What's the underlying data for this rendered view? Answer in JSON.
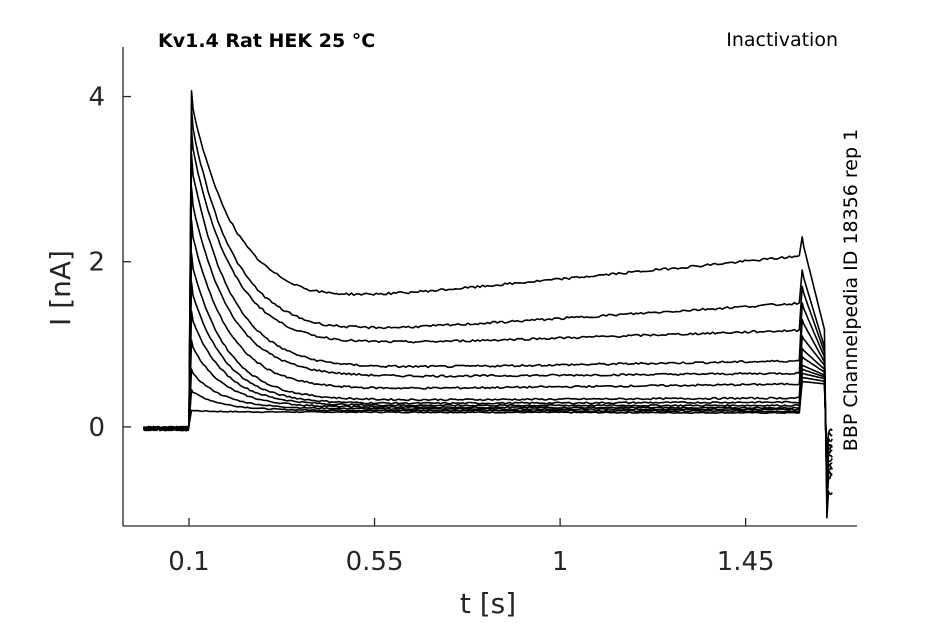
{
  "chart_data": {
    "type": "line",
    "title": "Kv1.4  Rat  HEK  25 °C",
    "protocol": "Inactivation",
    "source_note": "BBP Channelpedia ID 18356 rep 1",
    "xlabel": "t [s]",
    "ylabel": "I [nA]",
    "xlim": [
      -0.06,
      1.72
    ],
    "ylim": [
      -1.2,
      4.6
    ],
    "xticks": [
      0.1,
      0.55,
      1,
      1.45
    ],
    "xtick_labels": [
      "0.1",
      "0.55",
      "1",
      "1.45"
    ],
    "yticks": [
      0,
      2,
      4
    ],
    "ytick_labels": [
      "0",
      "2",
      "4"
    ],
    "grid": false,
    "line_color": "#000000",
    "series": [
      {
        "peak": 0.2,
        "plateau": 0.18,
        "end": 0.17,
        "tail_peak": 0.55,
        "tail_end": 0.52,
        "after": -0.05
      },
      {
        "peak": 0.45,
        "plateau": 0.2,
        "end": 0.19,
        "tail_peak": 0.6,
        "tail_end": 0.55,
        "after": -0.1
      },
      {
        "peak": 0.7,
        "plateau": 0.22,
        "end": 0.21,
        "tail_peak": 0.65,
        "tail_end": 0.58,
        "after": -0.15
      },
      {
        "peak": 1.05,
        "plateau": 0.24,
        "end": 0.23,
        "tail_peak": 0.7,
        "tail_end": 0.6,
        "after": -0.2
      },
      {
        "peak": 1.4,
        "plateau": 0.26,
        "end": 0.26,
        "tail_peak": 0.75,
        "tail_end": 0.62,
        "after": -0.25
      },
      {
        "peak": 1.75,
        "plateau": 0.28,
        "end": 0.3,
        "tail_peak": 0.85,
        "tail_end": 0.65,
        "after": -0.3
      },
      {
        "peak": 2.1,
        "plateau": 0.32,
        "end": 0.35,
        "tail_peak": 0.95,
        "tail_end": 0.68,
        "after": -0.35
      },
      {
        "peak": 2.5,
        "plateau": 0.45,
        "end": 0.52,
        "tail_peak": 1.1,
        "tail_end": 0.72,
        "after": -0.4
      },
      {
        "peak": 2.9,
        "plateau": 0.6,
        "end": 0.65,
        "tail_peak": 1.3,
        "tail_end": 0.75,
        "after": -0.45
      },
      {
        "peak": 3.3,
        "plateau": 0.7,
        "end": 0.8,
        "tail_peak": 1.5,
        "tail_end": 0.8,
        "after": -0.5
      },
      {
        "peak": 3.6,
        "plateau": 0.98,
        "end": 1.17,
        "tail_peak": 1.7,
        "tail_end": 0.85,
        "after": -0.55
      },
      {
        "peak": 3.85,
        "plateau": 1.12,
        "end": 1.5,
        "tail_peak": 1.9,
        "tail_end": 0.9,
        "after": -0.6
      },
      {
        "peak": 4.07,
        "plateau": 1.5,
        "end": 2.07,
        "tail_peak": 2.3,
        "tail_end": 1.1,
        "after": -0.8
      }
    ]
  }
}
